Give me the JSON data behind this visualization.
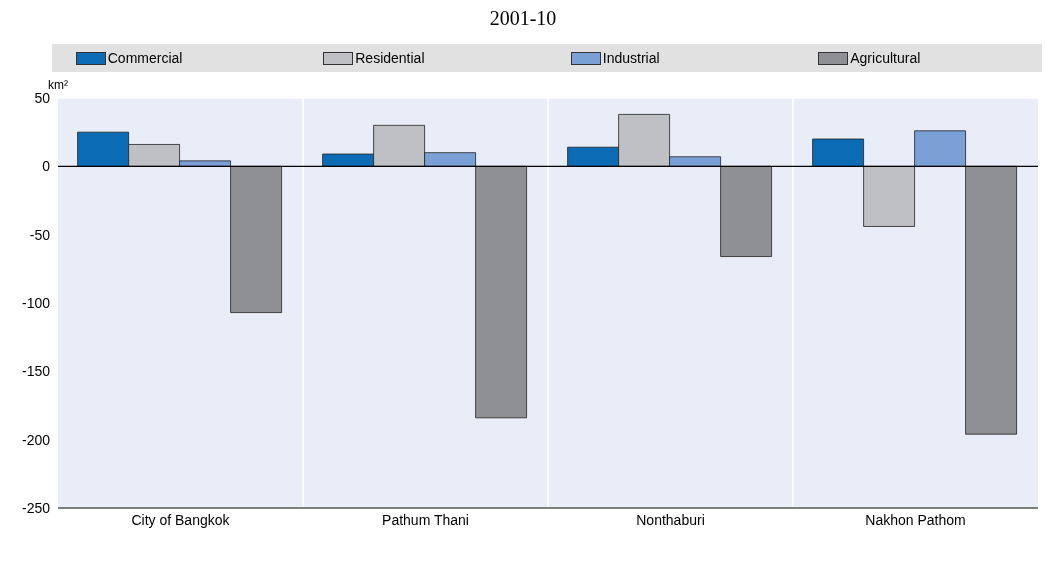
{
  "chart_data": {
    "type": "bar",
    "title": "2001-10",
    "ylabel": "km²",
    "categories": [
      "City of Bangkok",
      "Pathum Thani",
      "Nonthaburi",
      "Nakhon Pathom"
    ],
    "series": [
      {
        "name": "Commercial",
        "color": "#0b6cb5",
        "values": [
          25,
          9,
          14,
          20
        ]
      },
      {
        "name": "Residential",
        "color": "#bfc0c3",
        "values": [
          16,
          30,
          38,
          -44
        ]
      },
      {
        "name": "Industrial",
        "color": "#7aa0d6",
        "values": [
          4,
          10,
          7,
          26
        ]
      },
      {
        "name": "Agricultural",
        "color": "#8f9093",
        "values": [
          -107,
          -184,
          -66,
          -196
        ]
      }
    ],
    "ylim": [
      -250,
      50
    ],
    "yticks": [
      -250,
      -200,
      -150,
      -100,
      -50,
      0,
      50
    ],
    "grid": true,
    "legend": "top"
  }
}
